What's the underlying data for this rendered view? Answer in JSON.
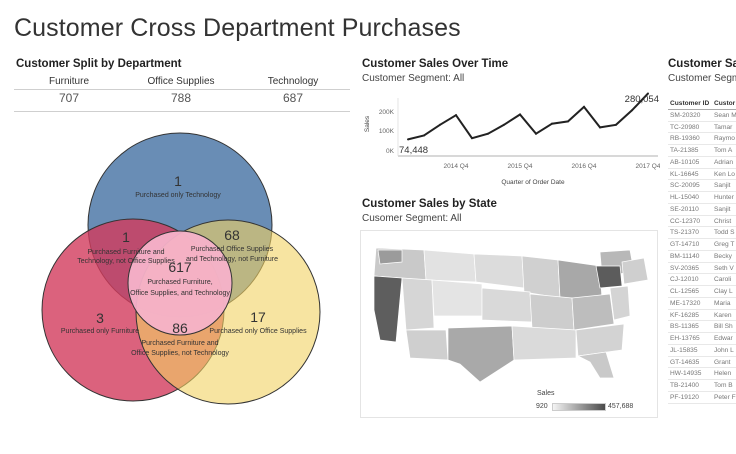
{
  "page_title": "Customer Cross Department Purchases",
  "split": {
    "title": "Customer Split by Department",
    "columns": [
      {
        "label": "Furniture",
        "value": "707"
      },
      {
        "label": "Office Supplies",
        "value": "788"
      },
      {
        "label": "Technology",
        "value": "687"
      }
    ]
  },
  "venn": {
    "colors": {
      "technology": "#4f79a8",
      "furniture": "#d23b5c",
      "office": "#f1d262",
      "center": "#f5b2c9"
    },
    "regions": {
      "only_tech": {
        "count": "1",
        "label": "Purchased only Technology"
      },
      "furn_tech": {
        "count": "1",
        "label_line1": "Purchased Furniture and",
        "label_line2": "Technology, not Office Supplies"
      },
      "office_tech": {
        "count": "68",
        "label_line1": "Purchased Office Supplies",
        "label_line2": "and Technology, not Furniture"
      },
      "all_three": {
        "count": "617",
        "label_line1": "Purchased Furniture,",
        "label_line2": "Office Supplies, and Technology"
      },
      "only_furn": {
        "count": "3",
        "label": "Purchased only Furniture"
      },
      "only_office": {
        "count": "17",
        "label": "Purchased only Office Supplies"
      },
      "furn_office": {
        "count": "86",
        "label_line1": "Purchased Furniture and",
        "label_line2": "Office Supplies, not Technology"
      }
    }
  },
  "sales_time": {
    "title": "Customer Sales Over Time",
    "subtitle": "Customer Segment: All",
    "xlabel": "Quarter of Order Date",
    "ylabel": "Sales",
    "y_ticks": [
      "200K",
      "100K",
      "0K"
    ],
    "x_ticks": [
      "2014 Q4",
      "2015 Q4",
      "2016 Q4",
      "2017 Q4"
    ],
    "start_label": "74,448",
    "end_label": "280,054",
    "line_color": "#222222"
  },
  "chart_data": {
    "type": "line",
    "title": "Customer Sales Over Time",
    "xlabel": "Quarter of Order Date",
    "ylabel": "Sales",
    "x": [
      "2014 Q1",
      "2014 Q2",
      "2014 Q3",
      "2014 Q4",
      "2015 Q1",
      "2015 Q2",
      "2015 Q3",
      "2015 Q4",
      "2016 Q1",
      "2016 Q2",
      "2016 Q3",
      "2016 Q4",
      "2017 Q1",
      "2017 Q2",
      "2017 Q3",
      "2017 Q4"
    ],
    "values": [
      74448,
      92000,
      140000,
      183000,
      80000,
      100000,
      140000,
      186000,
      100000,
      145000,
      155000,
      220000,
      128000,
      140000,
      205000,
      280054
    ],
    "ylim": [
      0,
      260000
    ]
  },
  "sales_state": {
    "title": "Customer Sales by State",
    "subtitle": "Cusomer Segment: All",
    "legend_title": "Sales",
    "legend_min": "920",
    "legend_max": "457,688"
  },
  "customer_table": {
    "title": "Customer Sal",
    "subtitle": "Customer Segm",
    "headers": [
      "Customer ID",
      "Custor"
    ],
    "rows": [
      [
        "SM-20320",
        "Sean M"
      ],
      [
        "TC-20980",
        "Tamar"
      ],
      [
        "RB-19360",
        "Raymo"
      ],
      [
        "TA-21385",
        "Tom A"
      ],
      [
        "AB-10105",
        "Adrian"
      ],
      [
        "KL-16645",
        "Ken Lo"
      ],
      [
        "SC-20095",
        "Sanjit"
      ],
      [
        "HL-15040",
        "Hunter"
      ],
      [
        "SE-20110",
        "Sanjit"
      ],
      [
        "CC-12370",
        "Christ"
      ],
      [
        "TS-21370",
        "Todd S"
      ],
      [
        "GT-14710",
        "Greg T"
      ],
      [
        "BM-11140",
        "Becky"
      ],
      [
        "SV-20365",
        "Seth V"
      ],
      [
        "CJ-12010",
        "Caroli"
      ],
      [
        "CL-12565",
        "Clay L"
      ],
      [
        "ME-17320",
        "Maria"
      ],
      [
        "KF-16285",
        "Karen"
      ],
      [
        "BS-11365",
        "Bill Sh"
      ],
      [
        "EH-13765",
        "Edwar"
      ],
      [
        "JL-15835",
        "John L"
      ],
      [
        "GT-14635",
        "Grant"
      ],
      [
        "HW-14935",
        "Helen"
      ],
      [
        "TB-21400",
        "Tom B"
      ],
      [
        "PF-19120",
        "Peter F"
      ]
    ]
  }
}
